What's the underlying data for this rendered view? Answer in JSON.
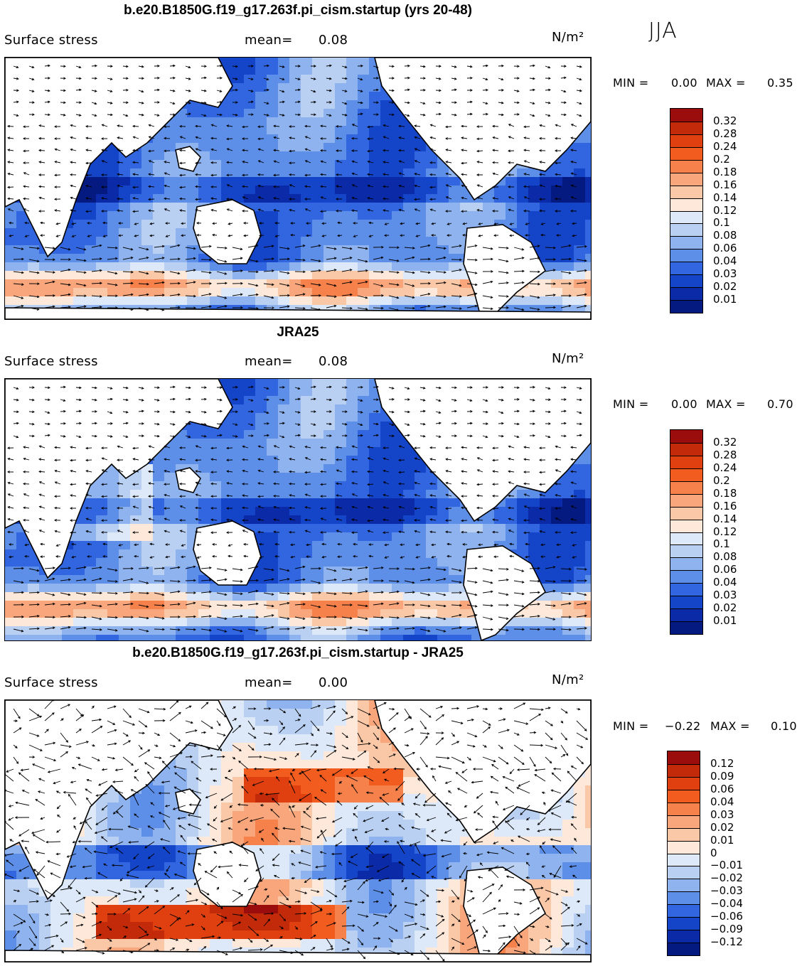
{
  "season": "JJA",
  "panels": [
    {
      "title": "b.e20.B1850G.f19_g17.263f.pi_cism.startup (yrs 20-48)",
      "variable": "Surface stress",
      "mean_label": "mean=",
      "mean_value": "0.08",
      "units": "N/m²",
      "min_label": "MIN =",
      "min_value": "0.00",
      "max_label": "MAX =",
      "max_value": "0.35"
    },
    {
      "title": "JRA25",
      "variable": "Surface stress",
      "mean_label": "mean=",
      "mean_value": "0.08",
      "units": "N/m²",
      "min_label": "MIN =",
      "min_value": "0.00",
      "max_label": "MAX =",
      "max_value": "0.70"
    },
    {
      "title": "b.e20.B1850G.f19_g17.263f.pi_cism.startup - JRA25",
      "variable": "Surface stress",
      "mean_label": "mean=",
      "mean_value": "0.00",
      "units": "N/m²",
      "min_label": "MIN =",
      "min_value": "−0.22",
      "max_label": "MAX =",
      "max_value": "0.10"
    }
  ],
  "chart_data": [
    {
      "type": "heatmap",
      "title": "b.e20.B1850G.f19_g17.263f.pi_cism.startup (yrs 20-48)",
      "variable": "Surface stress",
      "units": "N/m^2",
      "mean": 0.08,
      "min": 0.0,
      "max": 0.35,
      "colorbar_levels": [
        "0.32",
        "0.28",
        "0.24",
        "0.2",
        "0.18",
        "0.16",
        "0.14",
        "0.12",
        "0.1",
        "0.08",
        "0.06",
        "0.04",
        "0.03",
        "0.02",
        "0.01"
      ],
      "colorbar_colors": [
        "#9b0d0d",
        "#c32a0a",
        "#e0400f",
        "#f25c1f",
        "#f6814b",
        "#f9a67c",
        "#fbc8a7",
        "#fde8d9",
        "#dde9f8",
        "#b9d0f3",
        "#8fb3ee",
        "#5d8fe8",
        "#3166e0",
        "#1444c8",
        "#0a2aa8",
        "#051a80"
      ]
    },
    {
      "type": "heatmap",
      "title": "JRA25",
      "variable": "Surface stress",
      "units": "N/m^2",
      "mean": 0.08,
      "min": 0.0,
      "max": 0.7,
      "colorbar_levels": [
        "0.32",
        "0.28",
        "0.24",
        "0.2",
        "0.18",
        "0.16",
        "0.14",
        "0.12",
        "0.1",
        "0.08",
        "0.06",
        "0.04",
        "0.03",
        "0.02",
        "0.01"
      ],
      "colorbar_colors": [
        "#9b0d0d",
        "#c32a0a",
        "#e0400f",
        "#f25c1f",
        "#f6814b",
        "#f9a67c",
        "#fbc8a7",
        "#fde8d9",
        "#dde9f8",
        "#b9d0f3",
        "#8fb3ee",
        "#5d8fe8",
        "#3166e0",
        "#1444c8",
        "#0a2aa8",
        "#051a80"
      ]
    },
    {
      "type": "heatmap",
      "title": "b.e20.B1850G.f19_g17.263f.pi_cism.startup - JRA25",
      "variable": "Surface stress",
      "units": "N/m^2",
      "mean": 0.0,
      "min": -0.22,
      "max": 0.1,
      "colorbar_levels": [
        "0.12",
        "0.09",
        "0.06",
        "0.04",
        "0.03",
        "0.02",
        "0.01",
        "0",
        "−0.01",
        "−0.02",
        "−0.03",
        "−0.04",
        "−0.06",
        "−0.09",
        "−0.12"
      ],
      "colorbar_colors": [
        "#9b0d0d",
        "#c32a0a",
        "#e0400f",
        "#f25c1f",
        "#f6814b",
        "#f9a67c",
        "#fbc8a7",
        "#fde8d9",
        "#dde9f8",
        "#b9d0f3",
        "#8fb3ee",
        "#5d8fe8",
        "#3166e0",
        "#1444c8",
        "#0a2aa8",
        "#051a80"
      ]
    }
  ]
}
